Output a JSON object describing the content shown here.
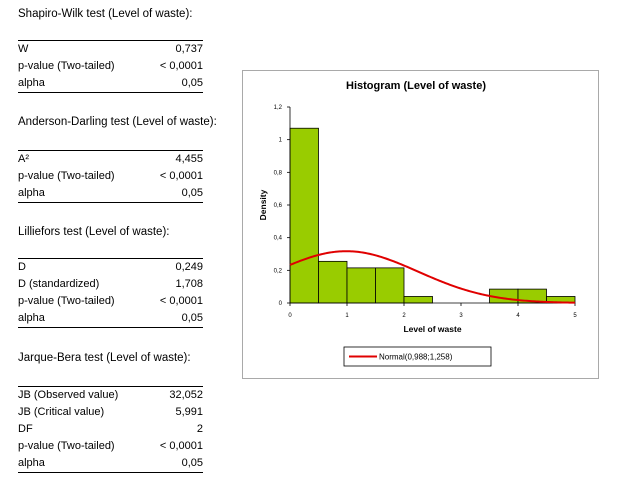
{
  "tests": [
    {
      "title": "Shapiro-Wilk test (Level of waste):",
      "rows": [
        {
          "label": "W",
          "value": "0,737"
        },
        {
          "label": "p-value (Two-tailed)",
          "value": "< 0,0001"
        },
        {
          "label": "alpha",
          "value": "0,05"
        }
      ]
    },
    {
      "title": "Anderson-Darling test (Level of waste):",
      "rows": [
        {
          "label": "A²",
          "value": "4,455"
        },
        {
          "label": "p-value (Two-tailed)",
          "value": "< 0,0001"
        },
        {
          "label": "alpha",
          "value": "0,05"
        }
      ]
    },
    {
      "title": "Lilliefors test (Level of waste):",
      "rows": [
        {
          "label": "D",
          "value": "0,249"
        },
        {
          "label": "D (standardized)",
          "value": "1,708"
        },
        {
          "label": "p-value (Two-tailed)",
          "value": "< 0,0001"
        },
        {
          "label": "alpha",
          "value": "0,05"
        }
      ]
    },
    {
      "title": "Jarque-Bera test (Level of waste):",
      "rows": [
        {
          "label": "JB (Observed value)",
          "value": "32,052"
        },
        {
          "label": "JB (Critical value)",
          "value": "5,991"
        },
        {
          "label": "DF",
          "value": "2"
        },
        {
          "label": "p-value (Two-tailed)",
          "value": "< 0,0001"
        },
        {
          "label": "alpha",
          "value": "0,05"
        }
      ]
    }
  ],
  "chart_data": {
    "type": "bar",
    "title": "Histogram  (Level of waste)",
    "xlabel": "Level of waste",
    "ylabel": "Density",
    "xlim": [
      0,
      5
    ],
    "ylim": [
      0,
      1.2
    ],
    "xticks": [
      "0",
      "1",
      "2",
      "3",
      "4",
      "5"
    ],
    "yticks": [
      "0",
      "0,2",
      "0,4",
      "0,6",
      "0,8",
      "1",
      "1,2"
    ],
    "bin_width": 0.5,
    "bins": [
      {
        "x0": 0.0,
        "x1": 0.5,
        "density": 1.07
      },
      {
        "x0": 0.5,
        "x1": 1.0,
        "density": 0.255
      },
      {
        "x0": 1.0,
        "x1": 1.5,
        "density": 0.215
      },
      {
        "x0": 1.5,
        "x1": 2.0,
        "density": 0.215
      },
      {
        "x0": 2.0,
        "x1": 2.5,
        "density": 0.04
      },
      {
        "x0": 2.5,
        "x1": 3.0,
        "density": 0
      },
      {
        "x0": 3.0,
        "x1": 3.5,
        "density": 0
      },
      {
        "x0": 3.5,
        "x1": 4.0,
        "density": 0.085
      },
      {
        "x0": 4.0,
        "x1": 4.5,
        "density": 0.085
      },
      {
        "x0": 4.5,
        "x1": 5.0,
        "density": 0.04
      }
    ],
    "bar_color": "#99cc00",
    "normal_curve": {
      "label": "Normal(0,988;1,258)",
      "mean": 0.988,
      "sd": 1.258,
      "color": "#e00000"
    },
    "grid": false,
    "legend": "bottom"
  }
}
